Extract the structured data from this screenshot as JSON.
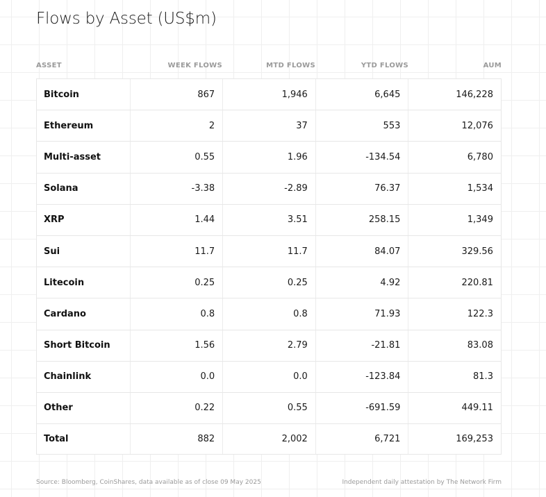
{
  "title": "Flows by Asset (US$m)",
  "columns": {
    "asset": "ASSET",
    "week": "WEEK FLOWS",
    "mtd": "MTD FLOWS",
    "ytd": "YTD FLOWS",
    "aum": "AUM"
  },
  "rows": [
    {
      "asset": "Bitcoin",
      "week": "867",
      "mtd": "1,946",
      "ytd": "6,645",
      "aum": "146,228"
    },
    {
      "asset": "Ethereum",
      "week": "2",
      "mtd": "37",
      "ytd": "553",
      "aum": "12,076"
    },
    {
      "asset": "Multi-asset",
      "week": "0.55",
      "mtd": "1.96",
      "ytd": "-134.54",
      "aum": "6,780"
    },
    {
      "asset": "Solana",
      "week": "-3.38",
      "mtd": "-2.89",
      "ytd": "76.37",
      "aum": "1,534"
    },
    {
      "asset": "XRP",
      "week": "1.44",
      "mtd": "3.51",
      "ytd": "258.15",
      "aum": "1,349"
    },
    {
      "asset": "Sui",
      "week": "11.7",
      "mtd": "11.7",
      "ytd": "84.07",
      "aum": "329.56"
    },
    {
      "asset": "Litecoin",
      "week": "0.25",
      "mtd": "0.25",
      "ytd": "4.92",
      "aum": "220.81"
    },
    {
      "asset": "Cardano",
      "week": "0.8",
      "mtd": "0.8",
      "ytd": "71.93",
      "aum": "122.3"
    },
    {
      "asset": "Short Bitcoin",
      "week": "1.56",
      "mtd": "2.79",
      "ytd": "-21.81",
      "aum": "83.08"
    },
    {
      "asset": "Chainlink",
      "week": "0.0",
      "mtd": "0.0",
      "ytd": "-123.84",
      "aum": "81.3"
    },
    {
      "asset": "Other",
      "week": "0.22",
      "mtd": "0.55",
      "ytd": "-691.59",
      "aum": "449.11"
    },
    {
      "asset": "Total",
      "week": "882",
      "mtd": "2,002",
      "ytd": "6,721",
      "aum": "169,253"
    }
  ],
  "footer": {
    "source": "Source: Bloomberg, CoinShares, data available as of close 09 May 2025",
    "attestation": "Independent daily attestation by The Network Firm"
  }
}
